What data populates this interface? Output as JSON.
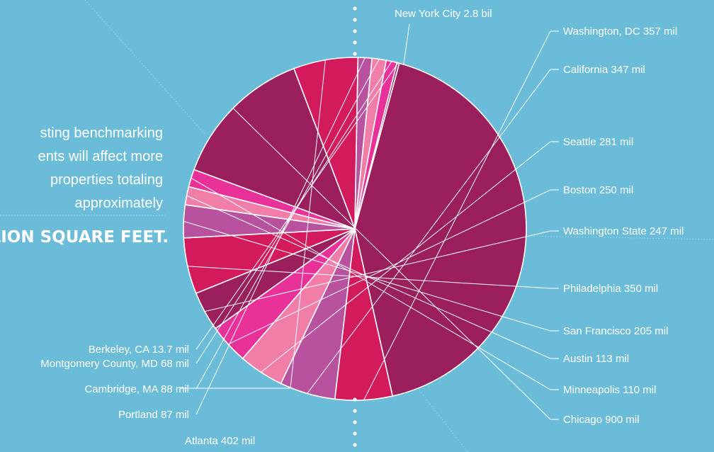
{
  "intro": {
    "lines": [
      "sting benchmarking",
      "ents will affect more",
      "properties totaling",
      "approximately"
    ],
    "headline": "LLION SQUARE FEET."
  },
  "colors": {
    "background": "#6bbcd9",
    "plum": "#9a1f5c",
    "crimson": "#d21a5c",
    "orchid": "#b8529e",
    "pink": "#f17ea8",
    "magenta": "#e8329a"
  },
  "chart_data": {
    "type": "pie",
    "title": "",
    "unit_note": "values in square feet as labeled",
    "slices": [
      {
        "label": "New York City 2.8 bil",
        "value": 2800,
        "color": "#9a1f5c"
      },
      {
        "label": "Washington, DC 357 mil",
        "value": 357,
        "color": "#d21a5c"
      },
      {
        "label": "California 347 mil",
        "value": 347,
        "color": "#b8529e"
      },
      {
        "label": "Seattle 281 mil",
        "value": 281,
        "color": "#f17ea8"
      },
      {
        "label": "Boston 250 mil",
        "value": 250,
        "color": "#e8329a"
      },
      {
        "label": "Washington State 247 mil",
        "value": 247,
        "color": "#9a1f5c"
      },
      {
        "label": "Philadelphia 350 mil",
        "value": 350,
        "color": "#d21a5c"
      },
      {
        "label": "San Francisco 205 mil",
        "value": 205,
        "color": "#b8529e"
      },
      {
        "label": "Austin 113 mil",
        "value": 113,
        "color": "#f17ea8"
      },
      {
        "label": "Minneapolis 110 mil",
        "value": 110,
        "color": "#e8329a"
      },
      {
        "label": "Chicago 900 mil",
        "value": 900,
        "color": "#9a1f5c"
      },
      {
        "label": "Atlanta 402 mil",
        "value": 402,
        "color": "#d21a5c"
      },
      {
        "label": "Portland 87 mil",
        "value": 87,
        "color": "#b8529e"
      },
      {
        "label": "Cambridge, MA 88 mil",
        "value": 88,
        "color": "#f17ea8"
      },
      {
        "label": "Montgomery County, MD 68 mil",
        "value": 68,
        "color": "#e8329a"
      },
      {
        "label": "Berkeley, CA 13.7 mil",
        "value": 13.7,
        "color": "#9a1f5c"
      }
    ]
  }
}
